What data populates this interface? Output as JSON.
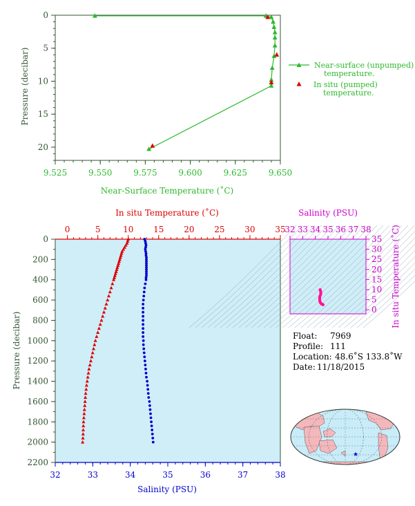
{
  "colors": {
    "green": "#2eb82e",
    "red": "#dd0000",
    "blue": "#0000cc",
    "magenta": "#cc00cc",
    "panel_bg": "#cfeef8",
    "axis_dark": "#335533"
  },
  "top_plot": {
    "xlabel": "Near-Surface Temperature (˚C)",
    "ylabel": "Pressure (decibar)",
    "xticks": [
      "9.525",
      "9.550",
      "9.575",
      "9.600",
      "9.625",
      "9.650"
    ],
    "yticks": [
      "0",
      "5",
      "10",
      "15",
      "20"
    ],
    "legend_unpumped_1": "Near-surface (unpumped)",
    "legend_unpumped_2": "temperature.",
    "legend_pumped_1": "In situ (pumped)",
    "legend_pumped_2": "temperature."
  },
  "main_plot": {
    "top_xlabel": "In situ Temperature (˚C)",
    "bottom_xlabel": "Salinity (PSU)",
    "ylabel": "Pressure (decibar)",
    "temp_ticks": [
      "0",
      "5",
      "10",
      "15",
      "20",
      "25",
      "30",
      "35"
    ],
    "sal_ticks": [
      "32",
      "33",
      "34",
      "35",
      "36",
      "37",
      "38"
    ],
    "p_ticks": [
      "0",
      "200",
      "400",
      "600",
      "800",
      "1000",
      "1200",
      "1400",
      "1600",
      "1800",
      "2000",
      "2200"
    ]
  },
  "ts_plot": {
    "title": "Salinity (PSU)",
    "ylabel": "In situ Temperature (˚C)",
    "sal_ticks": [
      "32",
      "33",
      "34",
      "35",
      "36",
      "37",
      "38"
    ],
    "temp_ticks": [
      "0",
      "5",
      "10",
      "15",
      "20",
      "25",
      "30",
      "35"
    ]
  },
  "info": {
    "float_label": "Float:",
    "float_value": "7969",
    "profile_label": "Profile:",
    "profile_value": "111",
    "location_label": "Location:",
    "location_value": "48.6˚S  133.8˚W",
    "date_label": "Date:",
    "date_value": "11/18/2015"
  },
  "chart_data": [
    {
      "type": "line",
      "xlabel": "Near-Surface Temperature (˚C)",
      "ylabel": "Pressure (decibar)",
      "xlim": [
        9.525,
        9.65
      ],
      "ylim": [
        22,
        0
      ],
      "series": [
        {
          "name": "Near-surface (unpumped) temperature.",
          "points": [
            [
              9.547,
              0.1
            ],
            [
              9.642,
              0.1
            ],
            [
              9.645,
              0.3
            ],
            [
              9.646,
              1.0
            ],
            [
              9.6465,
              1.8
            ],
            [
              9.647,
              2.6
            ],
            [
              9.647,
              3.4
            ],
            [
              9.647,
              4.6
            ],
            [
              9.6465,
              6.2
            ],
            [
              9.6455,
              8.0
            ],
            [
              9.645,
              9.8
            ],
            [
              9.645,
              10.7
            ],
            [
              9.577,
              20.3
            ]
          ]
        },
        {
          "name": "In situ (pumped) temperature.",
          "points": [
            [
              9.643,
              0.3
            ],
            [
              9.648,
              6.0
            ],
            [
              9.645,
              10.2
            ],
            [
              9.579,
              19.8
            ]
          ]
        }
      ]
    },
    {
      "type": "scatter",
      "xlabel": "In situ Temperature (˚C)",
      "x2label": "Salinity (PSU)",
      "ylabel": "Pressure (decibar)",
      "xlim": [
        -2,
        35
      ],
      "x2lim": [
        32,
        38
      ],
      "ylim": [
        2200,
        0
      ],
      "series": [
        {
          "name": "In situ Temperature",
          "points": [
            [
              10.0,
              0
            ],
            [
              9.9,
              20
            ],
            [
              9.8,
              40
            ],
            [
              9.6,
              60
            ],
            [
              9.4,
              80
            ],
            [
              9.2,
              100
            ],
            [
              9.0,
              120
            ],
            [
              8.9,
              140
            ],
            [
              8.8,
              160
            ],
            [
              8.7,
              180
            ],
            [
              8.6,
              200
            ],
            [
              8.5,
              220
            ],
            [
              8.4,
              240
            ],
            [
              8.3,
              260
            ],
            [
              8.2,
              280
            ],
            [
              8.1,
              300
            ],
            [
              8.0,
              320
            ],
            [
              7.9,
              340
            ],
            [
              7.8,
              360
            ],
            [
              7.7,
              380
            ],
            [
              7.6,
              400
            ],
            [
              7.4,
              440
            ],
            [
              7.2,
              480
            ],
            [
              7.0,
              520
            ],
            [
              6.8,
              560
            ],
            [
              6.6,
              600
            ],
            [
              6.4,
              640
            ],
            [
              6.2,
              680
            ],
            [
              6.0,
              720
            ],
            [
              5.8,
              760
            ],
            [
              5.6,
              800
            ],
            [
              5.4,
              840
            ],
            [
              5.2,
              880
            ],
            [
              5.0,
              920
            ],
            [
              4.8,
              960
            ],
            [
              4.6,
              1000
            ],
            [
              4.45,
              1040
            ],
            [
              4.3,
              1080
            ],
            [
              4.15,
              1120
            ],
            [
              4.0,
              1160
            ],
            [
              3.85,
              1200
            ],
            [
              3.7,
              1240
            ],
            [
              3.55,
              1280
            ],
            [
              3.45,
              1320
            ],
            [
              3.35,
              1360
            ],
            [
              3.25,
              1400
            ],
            [
              3.15,
              1440
            ],
            [
              3.08,
              1480
            ],
            [
              3.0,
              1520
            ],
            [
              2.95,
              1560
            ],
            [
              2.9,
              1600
            ],
            [
              2.85,
              1640
            ],
            [
              2.8,
              1680
            ],
            [
              2.75,
              1720
            ],
            [
              2.7,
              1760
            ],
            [
              2.65,
              1800
            ],
            [
              2.62,
              1840
            ],
            [
              2.6,
              1880
            ],
            [
              2.58,
              1920
            ],
            [
              2.55,
              1960
            ],
            [
              2.5,
              2000
            ]
          ]
        },
        {
          "name": "Salinity",
          "points": [
            [
              34.38,
              0
            ],
            [
              34.4,
              20
            ],
            [
              34.41,
              40
            ],
            [
              34.42,
              60
            ],
            [
              34.41,
              80
            ],
            [
              34.4,
              100
            ],
            [
              34.41,
              120
            ],
            [
              34.42,
              140
            ],
            [
              34.42,
              160
            ],
            [
              34.43,
              180
            ],
            [
              34.43,
              200
            ],
            [
              34.43,
              220
            ],
            [
              34.43,
              240
            ],
            [
              34.43,
              260
            ],
            [
              34.43,
              280
            ],
            [
              34.43,
              300
            ],
            [
              34.43,
              320
            ],
            [
              34.43,
              340
            ],
            [
              34.43,
              360
            ],
            [
              34.42,
              380
            ],
            [
              34.42,
              400
            ],
            [
              34.4,
              440
            ],
            [
              34.38,
              480
            ],
            [
              34.37,
              520
            ],
            [
              34.36,
              560
            ],
            [
              34.35,
              600
            ],
            [
              34.34,
              640
            ],
            [
              34.34,
              680
            ],
            [
              34.34,
              720
            ],
            [
              34.34,
              760
            ],
            [
              34.34,
              800
            ],
            [
              34.34,
              840
            ],
            [
              34.34,
              880
            ],
            [
              34.34,
              920
            ],
            [
              34.34,
              960
            ],
            [
              34.35,
              1000
            ],
            [
              34.35,
              1040
            ],
            [
              34.36,
              1080
            ],
            [
              34.37,
              1120
            ],
            [
              34.38,
              1160
            ],
            [
              34.39,
              1200
            ],
            [
              34.4,
              1240
            ],
            [
              34.41,
              1280
            ],
            [
              34.42,
              1320
            ],
            [
              34.43,
              1360
            ],
            [
              34.45,
              1400
            ],
            [
              34.46,
              1440
            ],
            [
              34.47,
              1480
            ],
            [
              34.48,
              1520
            ],
            [
              34.49,
              1560
            ],
            [
              34.51,
              1600
            ],
            [
              34.52,
              1640
            ],
            [
              34.53,
              1680
            ],
            [
              34.54,
              1720
            ],
            [
              34.55,
              1760
            ],
            [
              34.56,
              1800
            ],
            [
              34.57,
              1840
            ],
            [
              34.58,
              1880
            ],
            [
              34.59,
              1920
            ],
            [
              34.6,
              1960
            ],
            [
              34.61,
              2000
            ]
          ]
        }
      ]
    },
    {
      "type": "scatter",
      "xlabel": "Salinity (PSU)",
      "ylabel": "In situ Temperature (˚C)",
      "xlim": [
        32,
        38
      ],
      "ylim": [
        -2,
        35
      ],
      "series": [
        {
          "name": "T-S profile",
          "points": [
            [
              34.38,
              10.0
            ],
            [
              34.4,
              9.6
            ],
            [
              34.42,
              9.0
            ],
            [
              34.43,
              8.6
            ],
            [
              34.43,
              8.0
            ],
            [
              34.42,
              7.6
            ],
            [
              34.38,
              7.0
            ],
            [
              34.35,
              6.4
            ],
            [
              34.34,
              5.6
            ],
            [
              34.34,
              4.8
            ],
            [
              34.35,
              4.6
            ],
            [
              34.38,
              3.85
            ],
            [
              34.42,
              3.3
            ],
            [
              34.48,
              3.0
            ],
            [
              34.53,
              2.8
            ],
            [
              34.57,
              2.62
            ],
            [
              34.61,
              2.5
            ]
          ]
        }
      ]
    }
  ]
}
